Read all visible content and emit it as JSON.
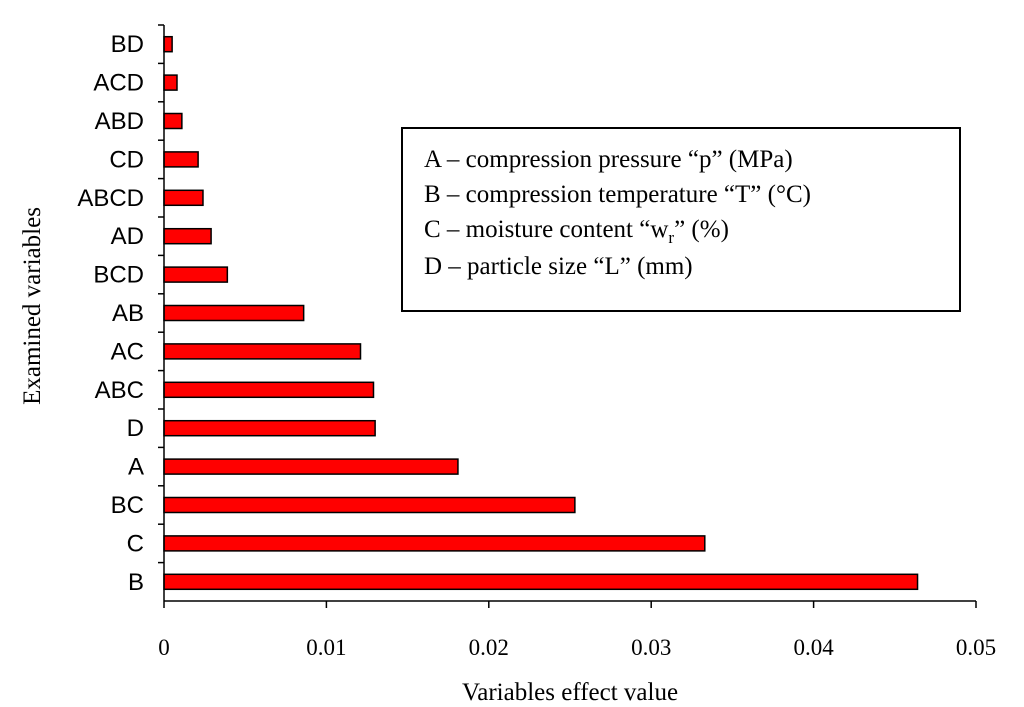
{
  "chart_data": {
    "type": "bar",
    "orientation": "horizontal",
    "categories": [
      "BD",
      "ACD",
      "ABD",
      "CD",
      "ABCD",
      "AD",
      "BCD",
      "AB",
      "AC",
      "ABC",
      "D",
      "A",
      "BC",
      "C",
      "B"
    ],
    "values": [
      0.0005,
      0.0008,
      0.0011,
      0.0021,
      0.0024,
      0.0029,
      0.0039,
      0.0086,
      0.0121,
      0.0129,
      0.013,
      0.0181,
      0.0253,
      0.0333,
      0.0464
    ],
    "xlim": [
      0,
      0.05
    ],
    "xticks": [
      0,
      0.01,
      0.02,
      0.03,
      0.04,
      0.05
    ],
    "xtick_labels": [
      "0",
      "0.01",
      "0.02",
      "0.03",
      "0.04",
      "0.05"
    ],
    "xlabel": "Variables effect value",
    "ylabel": "Examined variables",
    "bar_color": "#ff0000",
    "bar_edge_color": "#000000",
    "legend_placement": "upper-right",
    "legend": [
      {
        "prefix": "A – compression pressure “p” (MPa)"
      },
      {
        "prefix": "B – compression temperature “T” (°C)"
      },
      {
        "prefix": "C – moisture content “w",
        "sub": "r",
        "suffix": "” (%)"
      },
      {
        "prefix": "D – particle size “L” (mm)"
      }
    ]
  }
}
